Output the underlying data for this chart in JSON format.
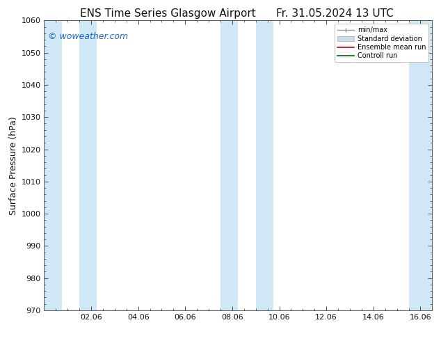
{
  "title_left": "ENS Time Series Glasgow Airport",
  "title_right": "Fr. 31.05.2024 13 UTC",
  "ylabel": "Surface Pressure (hPa)",
  "ylim": [
    970,
    1060
  ],
  "ytick_major": [
    970,
    980,
    990,
    1000,
    1010,
    1020,
    1030,
    1040,
    1050,
    1060
  ],
  "ytick_minor_interval": 2,
  "xlim_start": 0.0,
  "xlim_end": 16.5,
  "xtick_major_positions": [
    2,
    4,
    6,
    8,
    10,
    12,
    14,
    16
  ],
  "xtick_major_labels": [
    "02.06",
    "04.06",
    "06.06",
    "08.06",
    "10.06",
    "12.06",
    "14.06",
    "16.06"
  ],
  "watermark": "© woweather.com",
  "watermark_color": "#1a66cc",
  "background_color": "#ffffff",
  "plot_bg_color": "#ffffff",
  "shaded_bands": [
    {
      "x_start": 0.0,
      "x_end": 0.75
    },
    {
      "x_start": 1.5,
      "x_end": 2.25
    },
    {
      "x_start": 7.5,
      "x_end": 8.25
    },
    {
      "x_start": 9.0,
      "x_end": 9.75
    },
    {
      "x_start": 15.5,
      "x_end": 16.5
    }
  ],
  "band_color": "#d0e8f5",
  "legend_items": [
    {
      "label": "min/max",
      "color": "#999999",
      "type": "errorbar"
    },
    {
      "label": "Standard deviation",
      "color": "#ccddf0",
      "type": "bar"
    },
    {
      "label": "Ensemble mean run",
      "color": "#cc0000",
      "type": "line"
    },
    {
      "label": "Controll run",
      "color": "#006600",
      "type": "line"
    }
  ],
  "font_color": "#111111",
  "spine_color": "#555555",
  "tick_color": "#333333",
  "title_fontsize": 11,
  "label_fontsize": 9,
  "tick_fontsize": 8,
  "legend_fontsize": 7,
  "watermark_fontsize": 9
}
